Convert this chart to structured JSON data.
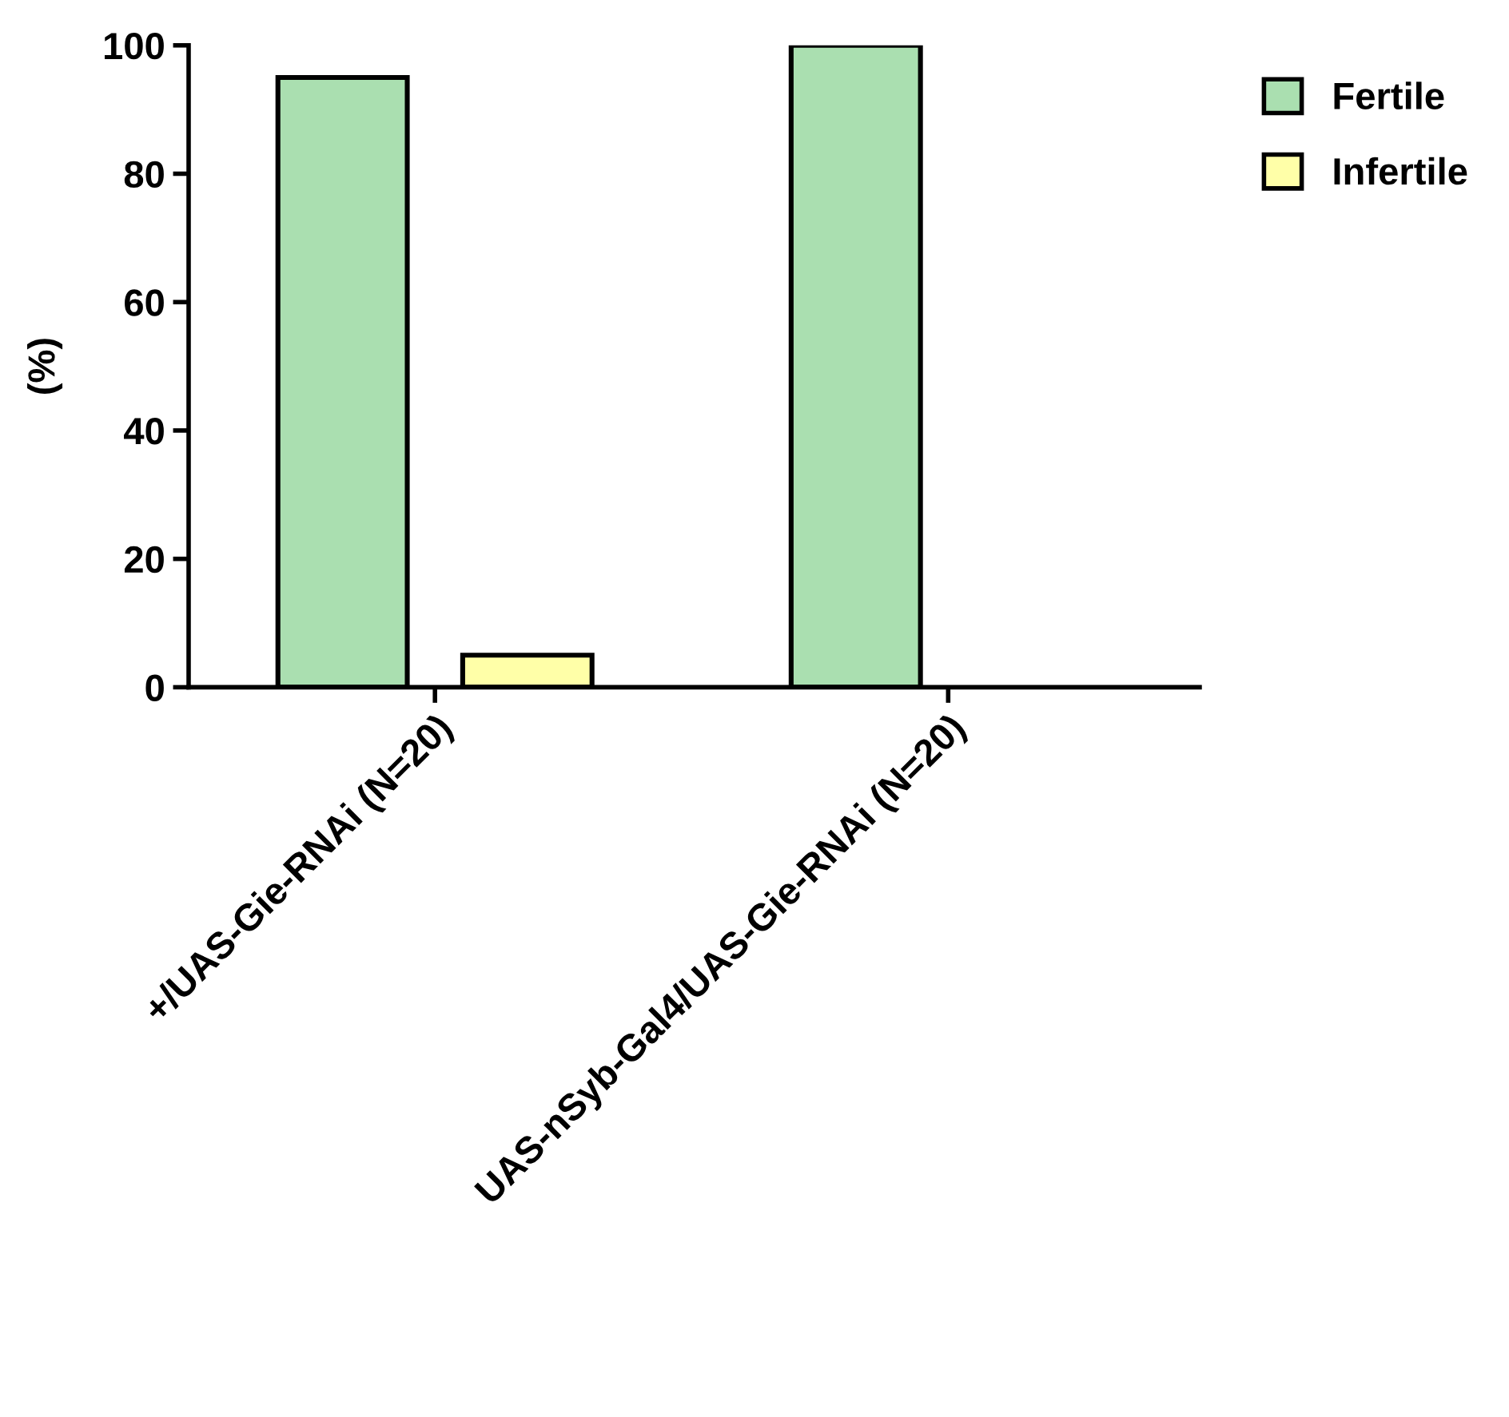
{
  "chart_data": {
    "type": "bar",
    "ylabel": "(%)",
    "categories": [
      "+/UAS-Gie-RNAi (N=20)",
      "UAS-nSyb-Gal4/UAS-Gie-RNAi (N=20)"
    ],
    "series": [
      {
        "name": "Fertile",
        "color": "#aadfb0",
        "values": [
          95,
          100
        ]
      },
      {
        "name": "Infertile",
        "color": "#ffffa8",
        "values": [
          5,
          0
        ]
      }
    ],
    "ylim": [
      0,
      100
    ],
    "yticks": [
      0,
      20,
      40,
      60,
      80,
      100
    ],
    "grid": false,
    "legend": "top right"
  }
}
